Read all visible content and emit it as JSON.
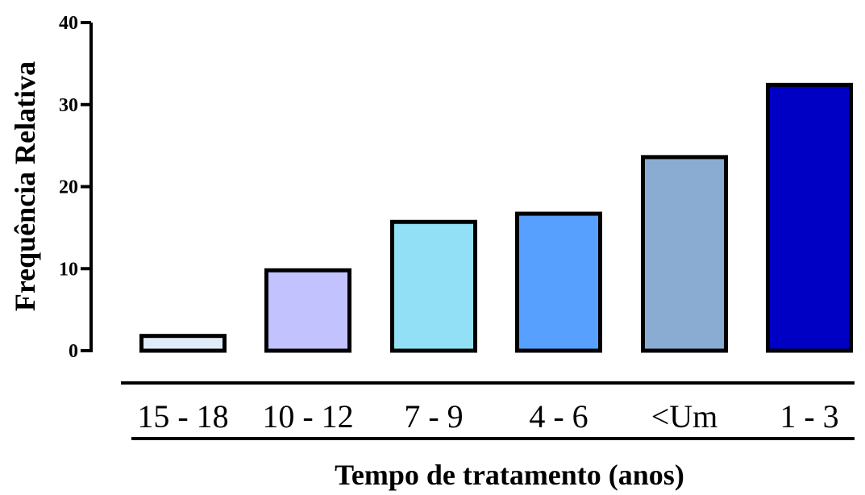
{
  "chart_data": {
    "type": "bar",
    "categories": [
      "15 - 18",
      "10 - 12",
      "7 - 9",
      "4 - 6",
      "<Um",
      "1 - 3"
    ],
    "values": [
      1.8,
      9.8,
      15.7,
      16.7,
      23.6,
      32.4
    ],
    "colors": [
      "#e0ebf8",
      "#c2c2ff",
      "#92e0f6",
      "#57a0fd",
      "#8aabd2",
      "#0000c4"
    ],
    "xlabel": "Tempo de tratamento (anos)",
    "ylabel": "Frequência Relativa",
    "ylim": [
      0,
      40
    ],
    "yticks": [
      "0",
      "10",
      "20",
      "30",
      "40"
    ],
    "grid": false
  }
}
